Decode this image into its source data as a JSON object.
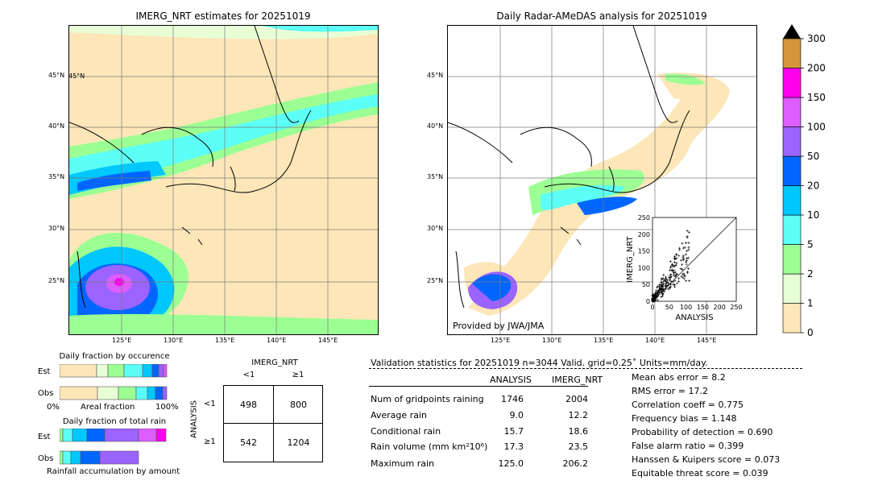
{
  "left_map": {
    "title": "IMERG_NRT estimates for 20251019",
    "lat_labels": [
      "45°N",
      "40°N",
      "35°N",
      "30°N",
      "25°N"
    ],
    "lon_labels": [
      "125°E",
      "130°E",
      "135°E",
      "140°E",
      "145°E"
    ]
  },
  "right_map": {
    "title": "Daily Radar-AMeDAS analysis for 20251019",
    "lat_labels": [
      "45°N",
      "40°N",
      "35°N",
      "30°N",
      "25°N"
    ],
    "lon_labels": [
      "125°E",
      "130°E",
      "135°E",
      "140°E",
      "145°E"
    ],
    "credit": "Provided by JWA/JMA"
  },
  "colorbar": {
    "levels": [
      "0",
      "1",
      "2",
      "5",
      "10",
      "20",
      "50",
      "100",
      "150",
      "200",
      "300"
    ],
    "colors": [
      "#fde6b8",
      "#e8ffd6",
      "#9cff93",
      "#5cfff6",
      "#00c8ff",
      "#0066ff",
      "#9b63ff",
      "#dd5dff",
      "#ff00ee",
      "#d4963a"
    ]
  },
  "chart_data": [
    {
      "type": "scatter",
      "title": "",
      "xlabel": "ANALYSIS",
      "ylabel": "IMERG_NRT",
      "xlim": [
        0,
        250
      ],
      "ylim": [
        0,
        250
      ],
      "xticks": [
        "0",
        "50",
        "100",
        "150",
        "200",
        "250"
      ],
      "yticks": [
        "0",
        "50",
        "100",
        "150",
        "200",
        "250"
      ]
    },
    {
      "type": "bar",
      "title": "Daily fraction by occurence",
      "categories": [
        "Est",
        "Obs"
      ],
      "xlabel": "Areal fraction",
      "x_start_label": "0%",
      "x_end_label": "100%"
    },
    {
      "type": "bar",
      "title": "Daily fraction of total rain",
      "categories": [
        "Est",
        "Obs"
      ],
      "xlabel": "Rainfall accumulation by amount"
    }
  ],
  "contingency": {
    "title": "IMERG_NRT",
    "col_labels": [
      "<1",
      "≥1"
    ],
    "row_axis_label": "ANALYSIS",
    "row_labels": [
      "<1",
      "≥1"
    ],
    "cells": [
      "498",
      "800",
      "542",
      "1204"
    ]
  },
  "validation": {
    "header": "Validation statistics for 20251019  n=3044 Valid. grid=0.25˚ Units=mm/day.",
    "col_analysis": "ANALYSIS",
    "col_imerg": "IMERG_NRT",
    "rows": [
      {
        "label": "Num of gridpoints raining",
        "a": "1746",
        "b": "2004"
      },
      {
        "label": "Average rain",
        "a": "9.0",
        "b": "12.2"
      },
      {
        "label": "Conditional rain",
        "a": "15.7",
        "b": "18.6"
      },
      {
        "label": "Rain volume (mm km²10⁶)",
        "a": "17.3",
        "b": "23.5"
      },
      {
        "label": "Maximum rain",
        "a": "125.0",
        "b": "206.2"
      }
    ],
    "scores": [
      "Mean abs error =    8.2",
      "RMS error =   17.2",
      "Correlation coeff =  0.775",
      "Frequency bias =  1.148",
      "Probability of detection =  0.690",
      "False alarm ratio =  0.399",
      "Hanssen & Kuipers score =  0.073",
      "Equitable threat score =  0.039"
    ]
  }
}
